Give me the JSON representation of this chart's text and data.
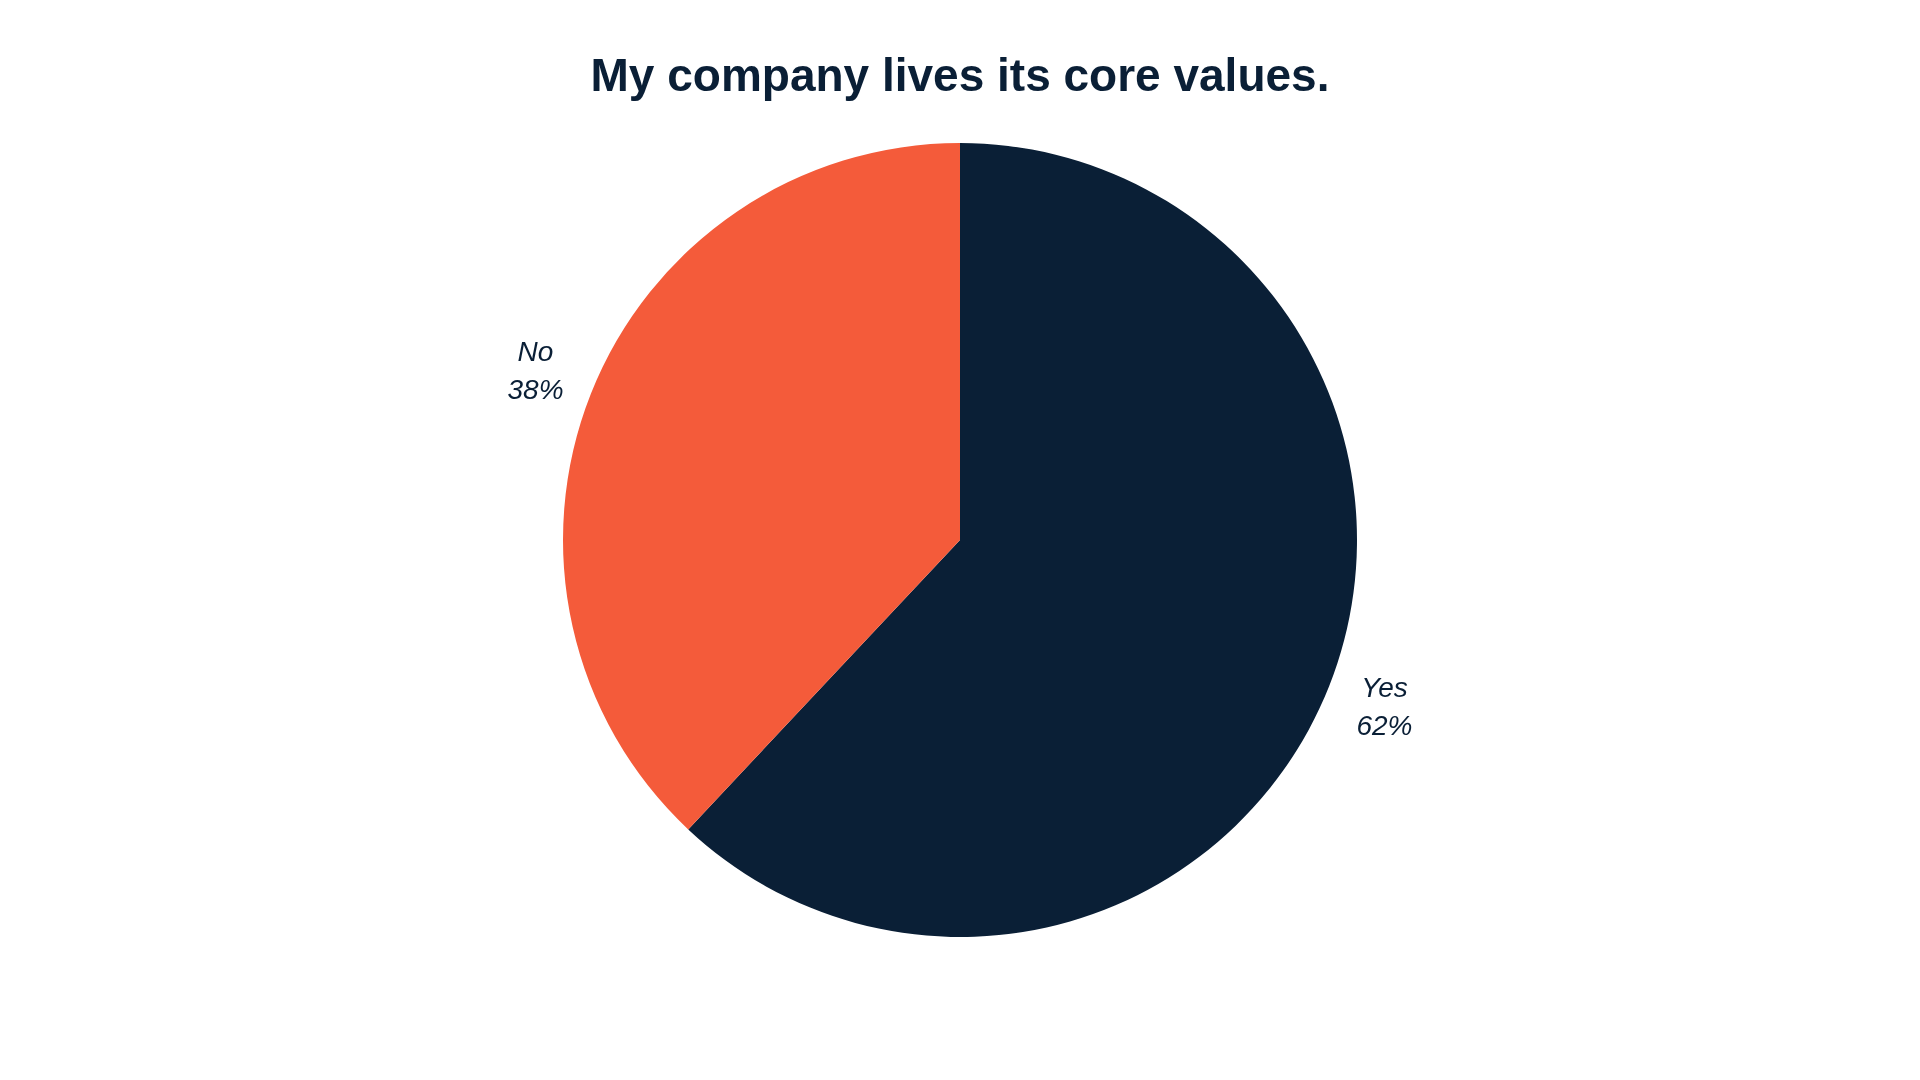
{
  "chart_data": {
    "type": "pie",
    "title": "My company lives its core values.",
    "categories": [
      "Yes",
      "No"
    ],
    "values": [
      62,
      38
    ],
    "colors": [
      "#0a1f36",
      "#f45b3a"
    ],
    "value_labels": [
      "62%",
      "38%"
    ]
  }
}
